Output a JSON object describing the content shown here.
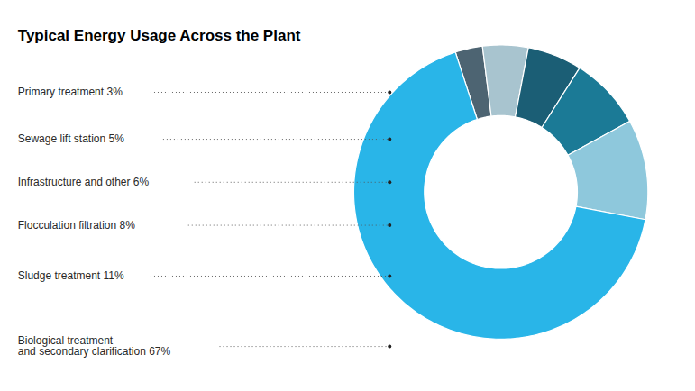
{
  "chart_data": {
    "type": "pie",
    "title": "Typical Energy Usage Across the Plant",
    "categories": [
      "Primary treatment 3%",
      "Sewage lift station 5%",
      "Infrastructure and other 6%",
      "Flocculation filtration 8%",
      "Sludge treatment 11%",
      "Biological treatment\nand secondary clarification 67%"
    ],
    "values": [
      3,
      5,
      6,
      8,
      11,
      67
    ],
    "colors": [
      "#4d6472",
      "#a8c4cf",
      "#1b5e75",
      "#1b7a96",
      "#8ec8dc",
      "#29b5e8"
    ]
  }
}
